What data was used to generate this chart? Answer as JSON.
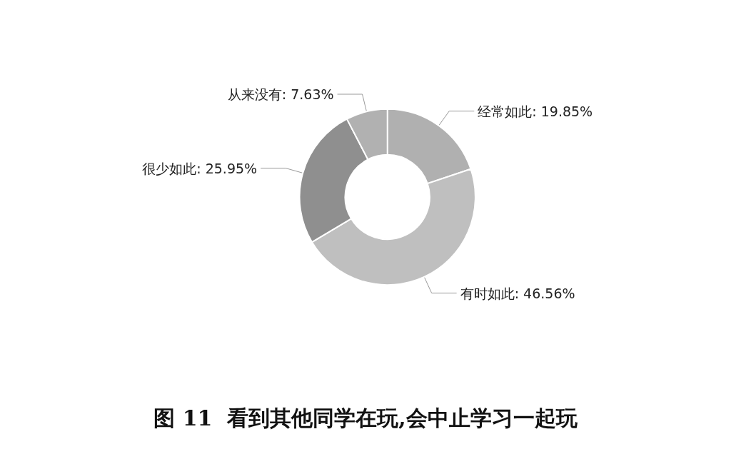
{
  "chart_data": {
    "type": "donut",
    "title": "图 11  看到其他同学在玩,会中止学习一起玩",
    "categories": [
      "经常如此",
      "有时如此",
      "很少如此",
      "从来没有"
    ],
    "values": [
      19.85,
      46.56,
      25.95,
      7.63
    ],
    "colors": [
      "#b0b0b0",
      "#bfbfbf",
      "#8f8f8f",
      "#b1b1b1"
    ],
    "value_labels": [
      "19.85%",
      "46.56%",
      "25.95%",
      "7.63%"
    ]
  }
}
